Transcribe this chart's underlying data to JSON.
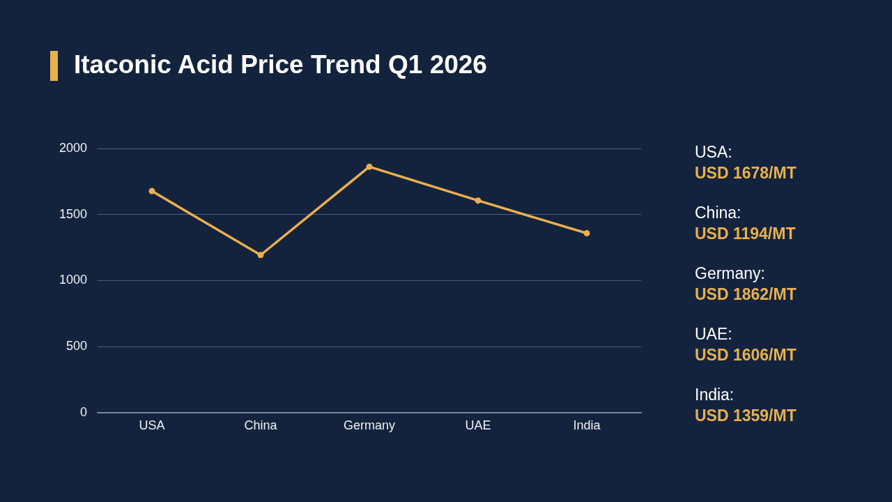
{
  "chart_data": {
    "type": "line",
    "title": "Itaconic Acid Price Trend Q1 2026",
    "categories": [
      "USA",
      "China",
      "Germany",
      "UAE",
      "India"
    ],
    "values": [
      1678,
      1194,
      1862,
      1606,
      1359
    ],
    "color": "#e8b04f",
    "annotations": [
      "USA:",
      "USD 1678/MT",
      "China:",
      "USD 1194/MT",
      "Germany:",
      "USD 1862/MT",
      "UAE:",
      "USD 1606/MT",
      "India:",
      "USD 1359/MT"
    ],
    "ylim": [
      0,
      2000
    ],
    "yticks": [
      0,
      500,
      1000,
      1500,
      2000
    ],
    "grid": "y",
    "marker": "circle",
    "line_style": "solid"
  }
}
